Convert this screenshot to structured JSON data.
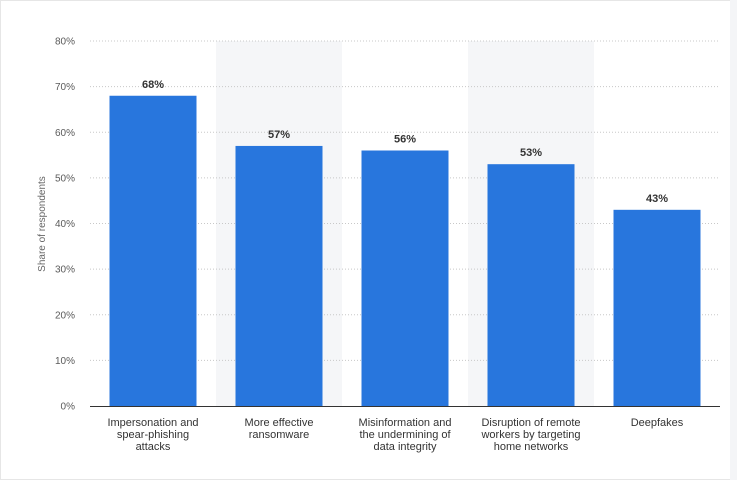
{
  "chart_data": {
    "type": "bar",
    "title": "",
    "xlabel": "",
    "ylabel": "Share of respondents",
    "ylim": [
      0,
      80
    ],
    "yticks": [
      0,
      10,
      20,
      30,
      40,
      50,
      60,
      70,
      80
    ],
    "ytick_suffix": "%",
    "grid": true,
    "legend": "none",
    "bar_color": "#2876dd",
    "band_color": "#f5f6f8",
    "categories": [
      [
        "Impersonation and",
        "spear-phishing",
        "attacks"
      ],
      [
        "More effective",
        "ransomware"
      ],
      [
        "Misinformation and",
        "the undermining of",
        "data integrity"
      ],
      [
        "Disruption of remote",
        "workers by targeting",
        "home networks"
      ],
      [
        "Deepfakes"
      ]
    ],
    "values": [
      68,
      57,
      56,
      53,
      43
    ],
    "data_labels": [
      "68%",
      "57%",
      "56%",
      "53%",
      "43%"
    ]
  }
}
